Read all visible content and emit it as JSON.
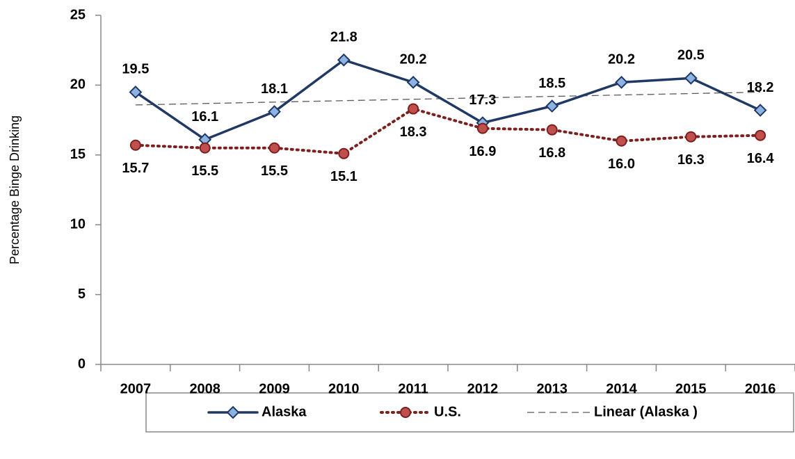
{
  "chart_data": {
    "type": "line",
    "y_label": "Percentage Binge Drinking",
    "categories": [
      "2007",
      "2008",
      "2009",
      "2010",
      "2011",
      "2012",
      "2013",
      "2014",
      "2015",
      "2016"
    ],
    "series": [
      {
        "name": "Alaska",
        "color": "#1f3864",
        "marker": "diamond",
        "marker_color": "#8db3e2",
        "line_style": "solid",
        "values": [
          19.5,
          16.1,
          18.1,
          21.8,
          20.2,
          17.3,
          18.5,
          20.2,
          20.5,
          18.2
        ],
        "value_labels": [
          "19.5",
          "16.1",
          "18.1",
          "21.8",
          "20.2",
          "17.3",
          "18.5",
          "20.2",
          "20.5",
          "18.2"
        ],
        "label_position": "above"
      },
      {
        "name": "U.S.",
        "color": "#7b1f1f",
        "marker": "circle",
        "marker_color": "#c0504d",
        "line_style": "dotted",
        "values": [
          15.7,
          15.5,
          15.5,
          15.1,
          18.3,
          16.9,
          16.8,
          16.0,
          16.3,
          16.4
        ],
        "value_labels": [
          "15.7",
          "15.5",
          "15.5",
          "15.1",
          "18.3",
          "16.9",
          "16.8",
          "16.0",
          "16.3",
          "16.4"
        ],
        "label_position": "below"
      }
    ],
    "trendline": {
      "name": "Linear (Alaska )",
      "series": 0,
      "fit": "linear",
      "color": "#595959"
    },
    "ylim": [
      0,
      25
    ],
    "yticks": [
      0,
      5,
      10,
      15,
      20,
      25
    ],
    "grid": false,
    "legend": "bottom"
  }
}
